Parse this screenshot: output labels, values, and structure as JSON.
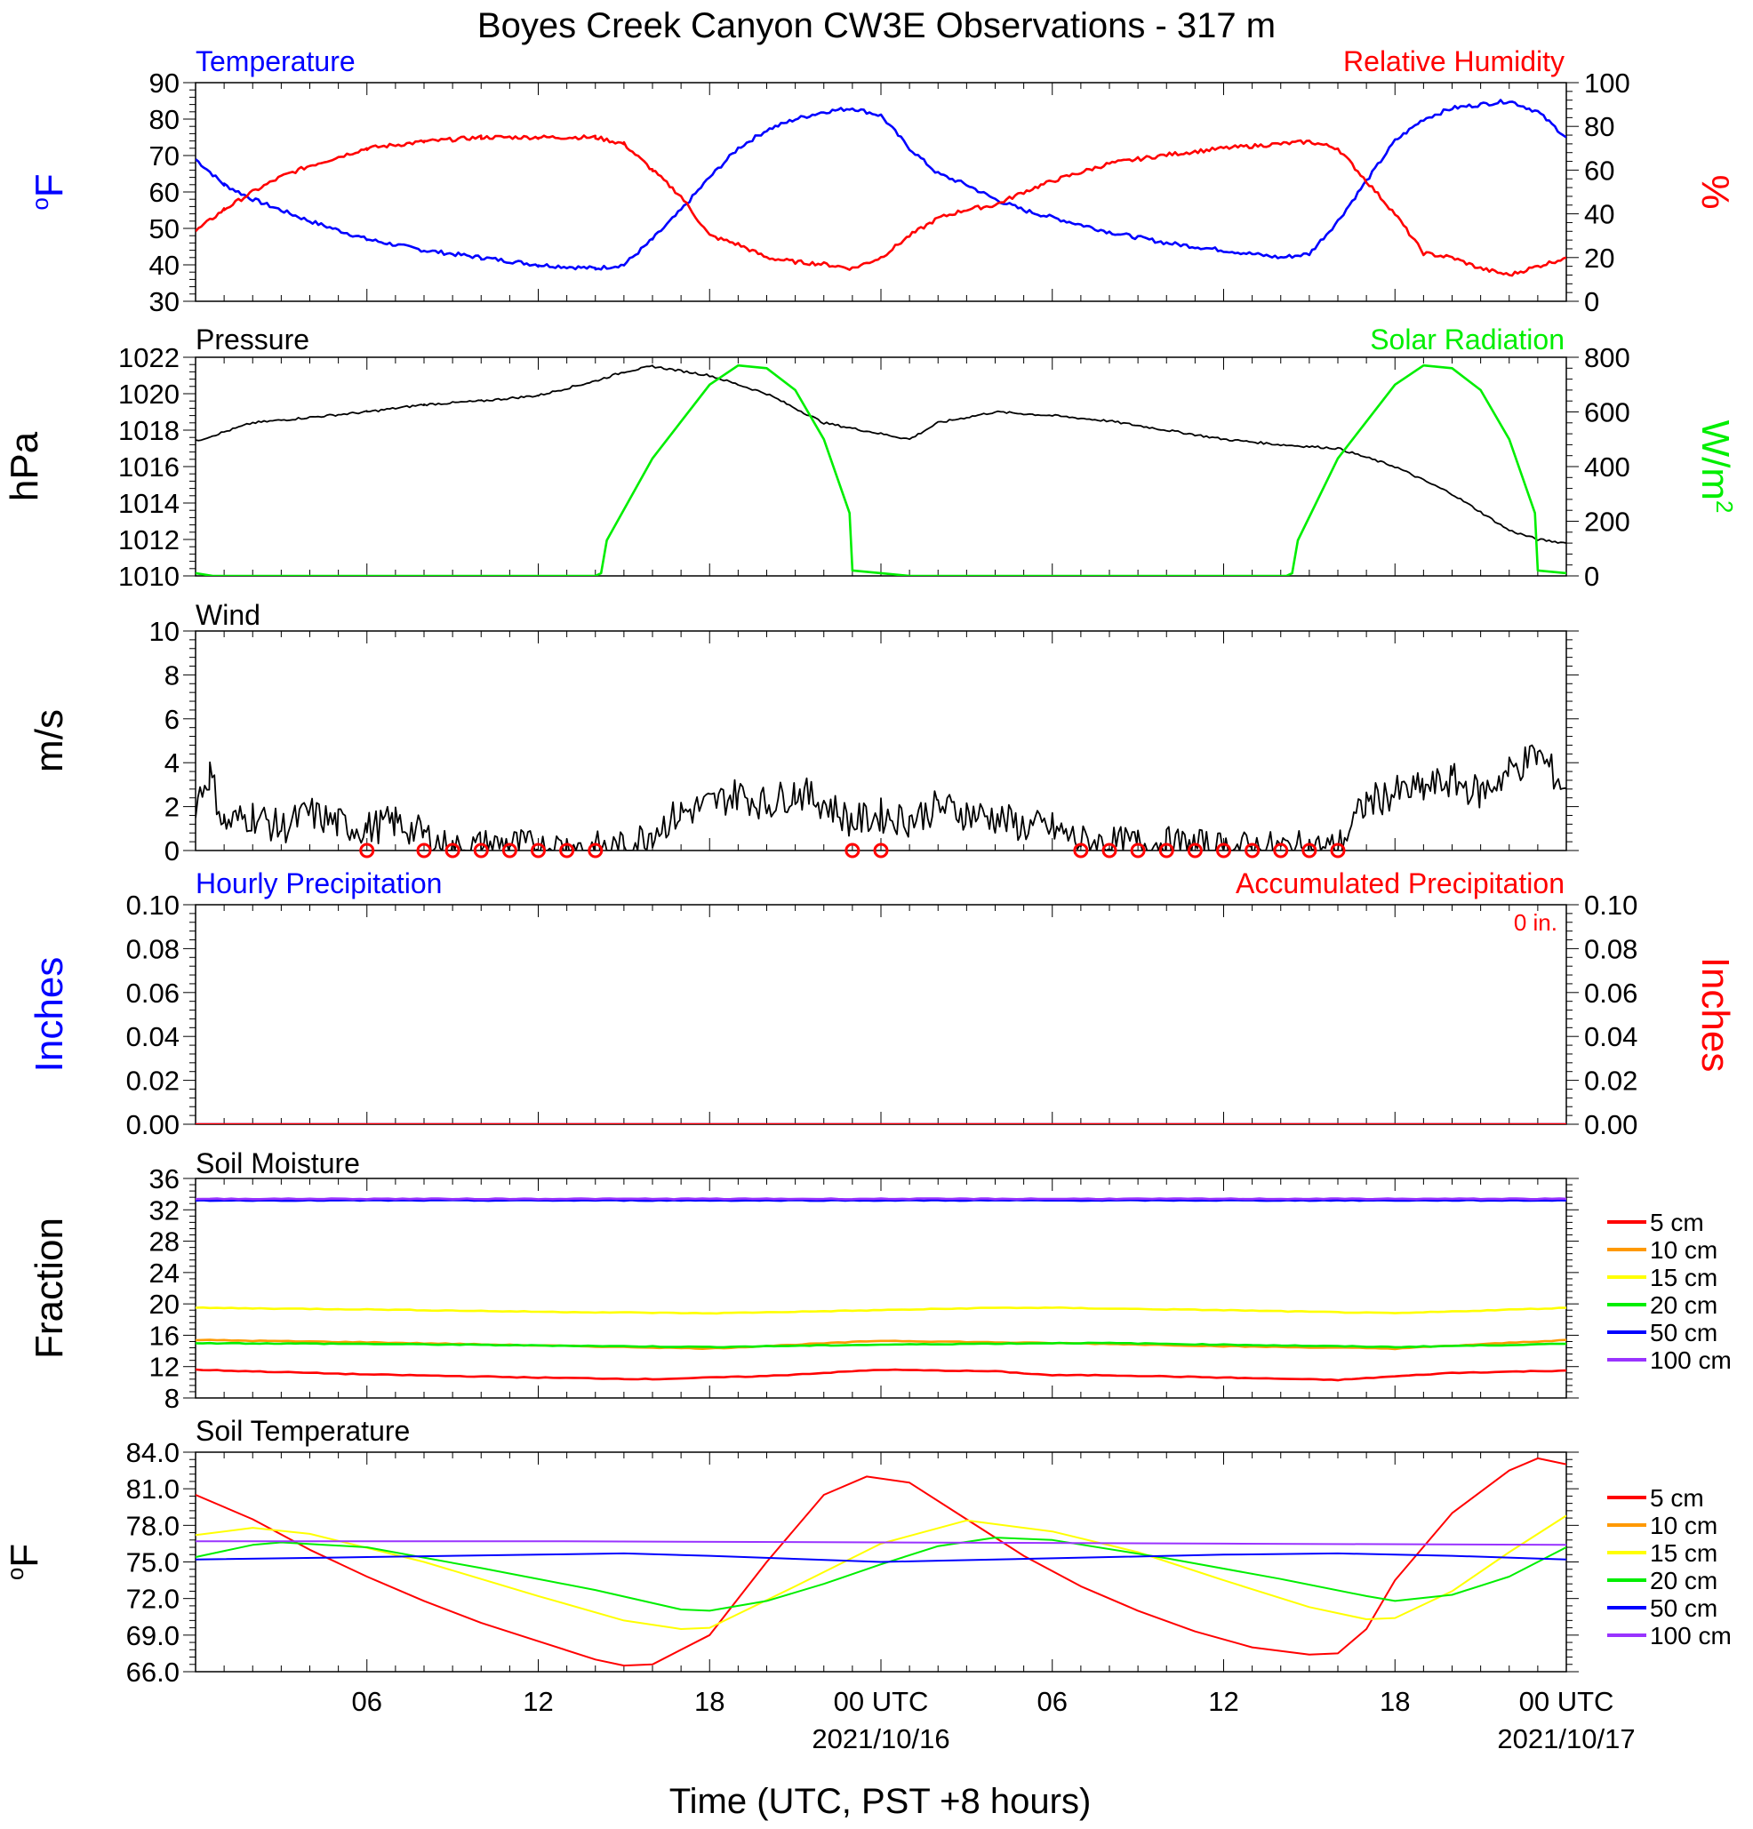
{
  "title": "Boyes Creek Canyon CW3E Observations - 317 m",
  "xaxis": {
    "title": "Time (UTC, PST +8 hours)",
    "ticks": [
      {
        "h": 6,
        "label": "06",
        "sub": ""
      },
      {
        "h": 12,
        "label": "12",
        "sub": ""
      },
      {
        "h": 18,
        "label": "18",
        "sub": ""
      },
      {
        "h": 24,
        "label": "00 UTC",
        "sub": "2021/10/16"
      },
      {
        "h": 30,
        "label": "06",
        "sub": ""
      },
      {
        "h": 36,
        "label": "12",
        "sub": ""
      },
      {
        "h": 42,
        "label": "18",
        "sub": ""
      },
      {
        "h": 48,
        "label": "00 UTC",
        "sub": "2021/10/17"
      }
    ]
  },
  "colors": {
    "blue": "#0000ff",
    "red": "#ff0000",
    "green": "#00ee00",
    "black": "#000000",
    "orange": "#ff9900",
    "yellow": "#ffff00",
    "purple": "#9933ff"
  },
  "legend_soil": [
    {
      "label": "5 cm",
      "color": "#ff0000"
    },
    {
      "label": "10 cm",
      "color": "#ff9900"
    },
    {
      "label": "15 cm",
      "color": "#ffff00"
    },
    {
      "label": "20 cm",
      "color": "#00ee00"
    },
    {
      "label": "50 cm",
      "color": "#0000ff"
    },
    {
      "label": "100 cm",
      "color": "#9933ff"
    }
  ],
  "chart_data": [
    {
      "type": "line",
      "panel": "temperature_rh",
      "title_left": "Temperature",
      "title_right": "Relative Humidity",
      "ylabel_left": "oF",
      "ylabel_right": "%",
      "ylim_left": [
        30,
        90
      ],
      "ylim_right": [
        0,
        100
      ],
      "yticks_left": [
        "90",
        "80",
        "70",
        "60",
        "50",
        "40",
        "30"
      ],
      "yticks_right": [
        "100",
        "80",
        "60",
        "40",
        "20",
        "0"
      ],
      "series": [
        {
          "name": "Temperature",
          "axis": "left",
          "color": "#0000ff",
          "x": [
            0,
            1,
            2,
            4,
            6,
            8,
            10,
            12,
            14,
            15,
            16,
            17,
            18,
            19,
            20,
            21,
            22,
            23,
            24,
            25,
            26,
            27,
            28,
            29,
            30,
            32,
            34,
            36,
            38,
            39,
            40,
            41,
            42,
            43,
            44,
            45,
            46,
            47,
            48
          ],
          "y": [
            69,
            62,
            58,
            52,
            47,
            44,
            42,
            40,
            39,
            40,
            47,
            55,
            64,
            72,
            77,
            80,
            82,
            83,
            81,
            72,
            65,
            62,
            58,
            55,
            53,
            49,
            46,
            44,
            42,
            43,
            52,
            63,
            74,
            80,
            83,
            84,
            85,
            82,
            75
          ]
        },
        {
          "name": "Relative Humidity",
          "axis": "right",
          "color": "#ff0000",
          "x": [
            0,
            1,
            2,
            3,
            4,
            6,
            8,
            10,
            12,
            14,
            15,
            16,
            17,
            18,
            19,
            20,
            21,
            22,
            23,
            24,
            25,
            26,
            27,
            28,
            29,
            30,
            32,
            34,
            36,
            38,
            39,
            40,
            41,
            42,
            43,
            44,
            45,
            46,
            47,
            48
          ],
          "y": [
            32,
            42,
            50,
            57,
            62,
            70,
            73,
            75,
            75,
            75,
            72,
            60,
            48,
            30,
            26,
            20,
            18,
            17,
            15,
            20,
            30,
            38,
            42,
            44,
            50,
            55,
            63,
            67,
            70,
            72,
            73,
            70,
            55,
            40,
            22,
            20,
            15,
            12,
            16,
            20
          ]
        }
      ]
    },
    {
      "type": "line",
      "panel": "pressure_solar",
      "title_left": "Pressure",
      "title_right": "Solar Radiation",
      "ylabel_left": "hPa",
      "ylabel_right": "W/m2",
      "ylim_left": [
        1010,
        1022
      ],
      "ylim_right": [
        0,
        800
      ],
      "yticks_left": [
        "1022",
        "1020",
        "1018",
        "1016",
        "1014",
        "1012",
        "1010"
      ],
      "yticks_right": [
        "800",
        "600",
        "400",
        "200",
        "0"
      ],
      "series": [
        {
          "name": "Pressure",
          "axis": "left",
          "color": "#000000",
          "x": [
            0,
            2,
            4,
            6,
            8,
            10,
            12,
            14,
            15,
            16,
            18,
            20,
            22,
            24,
            25,
            26,
            28,
            30,
            32,
            34,
            36,
            38,
            40,
            42,
            44,
            46,
            47,
            48
          ],
          "y": [
            1017.4,
            1018.4,
            1018.7,
            1019.0,
            1019.4,
            1019.6,
            1019.9,
            1020.7,
            1021.2,
            1021.5,
            1021.0,
            1020.0,
            1018.4,
            1017.8,
            1017.5,
            1018.4,
            1019.0,
            1018.8,
            1018.5,
            1018.0,
            1017.5,
            1017.2,
            1017.0,
            1016.0,
            1014.5,
            1012.5,
            1012.0,
            1011.8
          ]
        },
        {
          "name": "Solar Radiation",
          "axis": "right",
          "color": "#00ee00",
          "x": [
            0,
            0.6,
            14,
            14.2,
            14.4,
            16,
            18,
            19,
            20,
            21,
            22,
            22.9,
            23,
            24,
            25,
            38.2,
            38.4,
            38.6,
            40,
            42,
            43,
            44,
            45,
            46,
            46.9,
            47,
            48
          ],
          "y": [
            10,
            0,
            0,
            10,
            130,
            430,
            700,
            770,
            760,
            680,
            500,
            230,
            20,
            10,
            0,
            0,
            10,
            130,
            430,
            700,
            770,
            760,
            680,
            500,
            230,
            20,
            10
          ]
        }
      ]
    },
    {
      "type": "line",
      "panel": "wind",
      "title_left": "Wind",
      "ylabel_left": "m/s",
      "ylim_left": [
        0,
        10
      ],
      "yticks_left": [
        "10",
        "8",
        "6",
        "4",
        "2",
        "0"
      ],
      "series": [
        {
          "name": "Wind",
          "axis": "left",
          "color": "#000000",
          "x": [
            0,
            0.5,
            1,
            2,
            3,
            4,
            5,
            6,
            7,
            8,
            9,
            10,
            11,
            12,
            13,
            14,
            15,
            16,
            17,
            18,
            19,
            20,
            21,
            22,
            23,
            24,
            25,
            26,
            27,
            28,
            29,
            30,
            31,
            32,
            33,
            34,
            35,
            36,
            37,
            38,
            39,
            40,
            41,
            42,
            43,
            44,
            45,
            46,
            47,
            48
          ],
          "y": [
            2.2,
            3.5,
            1.2,
            1.6,
            1.0,
            1.7,
            1.2,
            1.0,
            1.3,
            0.7,
            0.0,
            0.2,
            0.3,
            0.1,
            0.2,
            0.1,
            0.1,
            0.9,
            1.7,
            2.1,
            2.6,
            2.1,
            2.7,
            2.2,
            1.3,
            1.6,
            1.4,
            2.0,
            1.7,
            1.5,
            1.1,
            1.0,
            0.4,
            0.3,
            0.3,
            0.3,
            0.2,
            0.1,
            0.1,
            0.1,
            0.1,
            0.1,
            2.2,
            2.6,
            2.8,
            3.2,
            2.6,
            3.6,
            4.4,
            2.8
          ]
        }
      ],
      "calm_markers_hours": [
        6,
        8,
        9,
        10,
        11,
        12,
        13,
        14,
        23,
        24,
        31,
        32,
        33,
        34,
        35,
        36,
        37,
        38,
        39,
        40
      ]
    },
    {
      "type": "line",
      "panel": "precipitation",
      "title_left": "Hourly Precipitation",
      "title_right": "Accumulated Precipitation",
      "annotation": "0 in.",
      "ylabel_left": "Inches",
      "ylabel_right": "Inches",
      "ylim_left": [
        0,
        0.1
      ],
      "ylim_right": [
        0,
        0.1
      ],
      "yticks_left": [
        "0.10",
        "0.08",
        "0.06",
        "0.04",
        "0.02",
        "0.00"
      ],
      "yticks_right": [
        "0.10",
        "0.08",
        "0.06",
        "0.04",
        "0.02",
        "0.00"
      ],
      "series": [
        {
          "name": "Hourly Precipitation",
          "axis": "left",
          "color": "#0000ff",
          "x": [
            0,
            48
          ],
          "y": [
            0,
            0
          ]
        },
        {
          "name": "Accumulated Precipitation",
          "axis": "right",
          "color": "#ff0000",
          "x": [
            0,
            48
          ],
          "y": [
            0,
            0
          ]
        }
      ]
    },
    {
      "type": "line",
      "panel": "soil_moisture",
      "title_left": "Soil Moisture",
      "ylabel_left": "Fraction",
      "ylim_left": [
        8,
        36
      ],
      "yticks_left": [
        "36",
        "32",
        "28",
        "24",
        "20",
        "16",
        "12",
        "8"
      ],
      "gap_hours": [
        30.1,
        31.6
      ],
      "series": [
        {
          "name": "5 cm",
          "axis": "left",
          "color": "#ff0000",
          "x": [
            0,
            6,
            12,
            16,
            20,
            24,
            28,
            30,
            32,
            36,
            40,
            44,
            48
          ],
          "y": [
            11.6,
            11.0,
            10.6,
            10.4,
            10.8,
            11.6,
            11.4,
            10.9,
            10.9,
            10.6,
            10.3,
            11.2,
            11.5
          ]
        },
        {
          "name": "10 cm",
          "axis": "left",
          "color": "#ff9900",
          "x": [
            0,
            6,
            12,
            18,
            24,
            30,
            32,
            36,
            42,
            48
          ],
          "y": [
            15.4,
            15.1,
            14.7,
            14.3,
            15.3,
            15.0,
            14.9,
            14.6,
            14.3,
            15.4
          ]
        },
        {
          "name": "15 cm",
          "axis": "left",
          "color": "#ffff00",
          "x": [
            0,
            6,
            12,
            18,
            24,
            28,
            30,
            32,
            36,
            42,
            48
          ],
          "y": [
            19.5,
            19.3,
            19.0,
            18.8,
            19.2,
            19.5,
            19.5,
            19.4,
            19.2,
            18.8,
            19.5
          ]
        },
        {
          "name": "20 cm",
          "axis": "left",
          "color": "#00ee00",
          "x": [
            0,
            6,
            12,
            18,
            24,
            30,
            32,
            36,
            42,
            48
          ],
          "y": [
            15.0,
            14.9,
            14.7,
            14.5,
            14.8,
            15.0,
            15.0,
            14.8,
            14.5,
            14.9
          ]
        },
        {
          "name": "50 cm",
          "axis": "left",
          "color": "#0000ff",
          "x": [
            0,
            12,
            24,
            30,
            32,
            40,
            48
          ],
          "y": [
            33.2,
            33.2,
            33.2,
            33.2,
            33.2,
            33.2,
            33.2
          ]
        },
        {
          "name": "100 cm",
          "axis": "left",
          "color": "#9933ff",
          "x": [
            0,
            12,
            24,
            30,
            32,
            40,
            48
          ],
          "y": [
            33.4,
            33.4,
            33.4,
            33.4,
            33.4,
            33.4,
            33.4
          ]
        }
      ]
    },
    {
      "type": "line",
      "panel": "soil_temperature",
      "title_left": "Soil Temperature",
      "ylabel_left": "oF",
      "ylim_left": [
        66,
        84
      ],
      "yticks_left": [
        "84.0",
        "81.0",
        "78.0",
        "75.0",
        "72.0",
        "69.0",
        "66.0"
      ],
      "series": [
        {
          "name": "5 cm",
          "axis": "left",
          "color": "#ff0000",
          "x": [
            0,
            2,
            4,
            6,
            8,
            10,
            12,
            14,
            15,
            16,
            18,
            20,
            22,
            23.5,
            25,
            27,
            29,
            31,
            33,
            35,
            37,
            39,
            40,
            41,
            42,
            44,
            46,
            47,
            48
          ],
          "y": [
            80.5,
            78.5,
            76.0,
            73.8,
            71.8,
            70.0,
            68.5,
            67.0,
            66.5,
            66.6,
            69.0,
            75.0,
            80.5,
            82.0,
            81.5,
            78.5,
            75.5,
            73.0,
            71.0,
            69.3,
            68.0,
            67.4,
            67.5,
            69.5,
            73.5,
            79.0,
            82.5,
            83.5,
            83.0
          ]
        },
        {
          "name": "10 cm",
          "axis": "left",
          "color": "#ff9900",
          "x": [
            0,
            48
          ],
          "y": [
            null,
            null
          ]
        },
        {
          "name": "15 cm",
          "axis": "left",
          "color": "#ffff00",
          "x": [
            0,
            2,
            4,
            8,
            12,
            15,
            17,
            18,
            21,
            24,
            27,
            30,
            33,
            36,
            39,
            41,
            42,
            44,
            46,
            48
          ],
          "y": [
            77.2,
            77.8,
            77.3,
            75.0,
            72.2,
            70.2,
            69.5,
            69.6,
            73.0,
            76.5,
            78.4,
            77.5,
            75.8,
            73.5,
            71.3,
            70.3,
            70.4,
            72.6,
            75.8,
            78.8
          ]
        },
        {
          "name": "20 cm",
          "axis": "left",
          "color": "#00ee00",
          "x": [
            0,
            2,
            3,
            6,
            10,
            14,
            17,
            18,
            20,
            22,
            24,
            26,
            28,
            30,
            34,
            38,
            41,
            42,
            44,
            46,
            48
          ],
          "y": [
            75.4,
            76.4,
            76.6,
            76.2,
            74.5,
            72.7,
            71.1,
            71.0,
            71.8,
            73.2,
            74.8,
            76.3,
            77.0,
            76.8,
            75.3,
            73.6,
            72.2,
            71.8,
            72.3,
            73.8,
            76.2
          ]
        },
        {
          "name": "50 cm",
          "axis": "left",
          "color": "#0000ff",
          "x": [
            0,
            6,
            12,
            15,
            18,
            24,
            26,
            30,
            36,
            40,
            44,
            48
          ],
          "y": [
            75.2,
            75.4,
            75.6,
            75.7,
            75.5,
            75.0,
            75.1,
            75.3,
            75.6,
            75.7,
            75.5,
            75.2
          ]
        },
        {
          "name": "100 cm",
          "axis": "left",
          "color": "#9933ff",
          "x": [
            0,
            12,
            24,
            36,
            48
          ],
          "y": [
            76.7,
            76.7,
            76.6,
            76.5,
            76.4
          ]
        }
      ]
    }
  ]
}
